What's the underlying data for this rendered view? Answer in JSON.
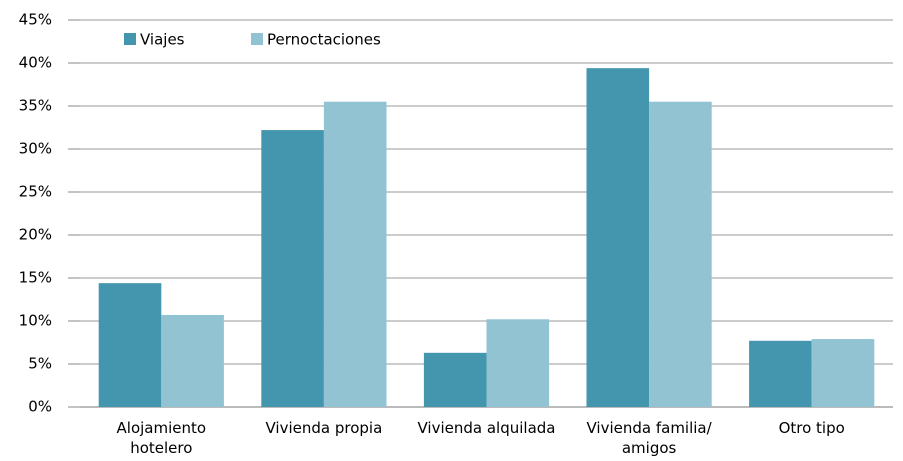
{
  "chart_data": {
    "type": "bar",
    "categories": [
      "Alojamiento\nhotelero",
      "Vivienda propia",
      "Vivienda alquilada",
      "Vivienda familia/\namigos",
      "Otro tipo"
    ],
    "series": [
      {
        "name": "Viajes",
        "color": "#4396ae",
        "values": [
          14.4,
          32.2,
          6.3,
          39.4,
          7.7
        ]
      },
      {
        "name": "Pernoctaciones",
        "color": "#92c3d3",
        "values": [
          10.7,
          35.5,
          10.2,
          35.5,
          7.9
        ]
      }
    ],
    "ylim": [
      0,
      45
    ],
    "yticks": [
      {
        "value": 0,
        "label": "0%"
      },
      {
        "value": 5,
        "label": "5%"
      },
      {
        "value": 10,
        "label": "10%"
      },
      {
        "value": 15,
        "label": "15%"
      },
      {
        "value": 20,
        "label": "20%"
      },
      {
        "value": 25,
        "label": "25%"
      },
      {
        "value": 30,
        "label": "30%"
      },
      {
        "value": 35,
        "label": "35%"
      },
      {
        "value": 40,
        "label": "40%"
      },
      {
        "value": 45,
        "label": "45%"
      }
    ],
    "grid": true,
    "legend": "top-left"
  }
}
